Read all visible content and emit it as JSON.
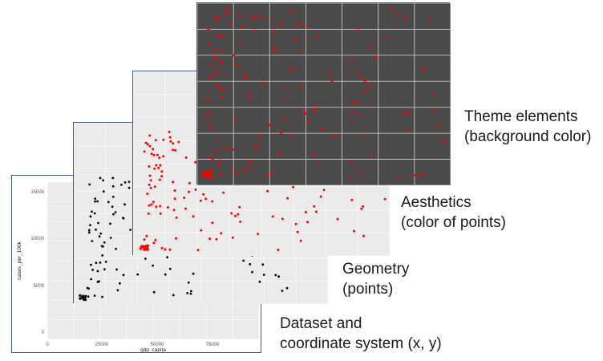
{
  "captions": {
    "theme": {
      "line1": "Theme elements",
      "line2": "(background color)"
    },
    "aesthetics": {
      "line1": "Aesthetics",
      "line2": "(color of points)"
    },
    "geometry": {
      "line1": "Geometry",
      "line2": "(points)"
    },
    "dataset": {
      "line1": "Dataset and",
      "line2": "coordinate system (x, y)"
    }
  },
  "plot": {
    "xlabel": "gdp_capita",
    "ylabel": "cases_per_100k",
    "x_ticks": [
      "0",
      "25000",
      "50000",
      "75000"
    ],
    "y_ticks": [
      "0",
      "5000",
      "10000",
      "15000"
    ]
  },
  "colors": {
    "panel_light": "#ebebeb",
    "panel_dark": "#4a4a4a",
    "point_default": "#000000",
    "point_red": "#ff0000",
    "frame": "#3a5a8c"
  }
}
